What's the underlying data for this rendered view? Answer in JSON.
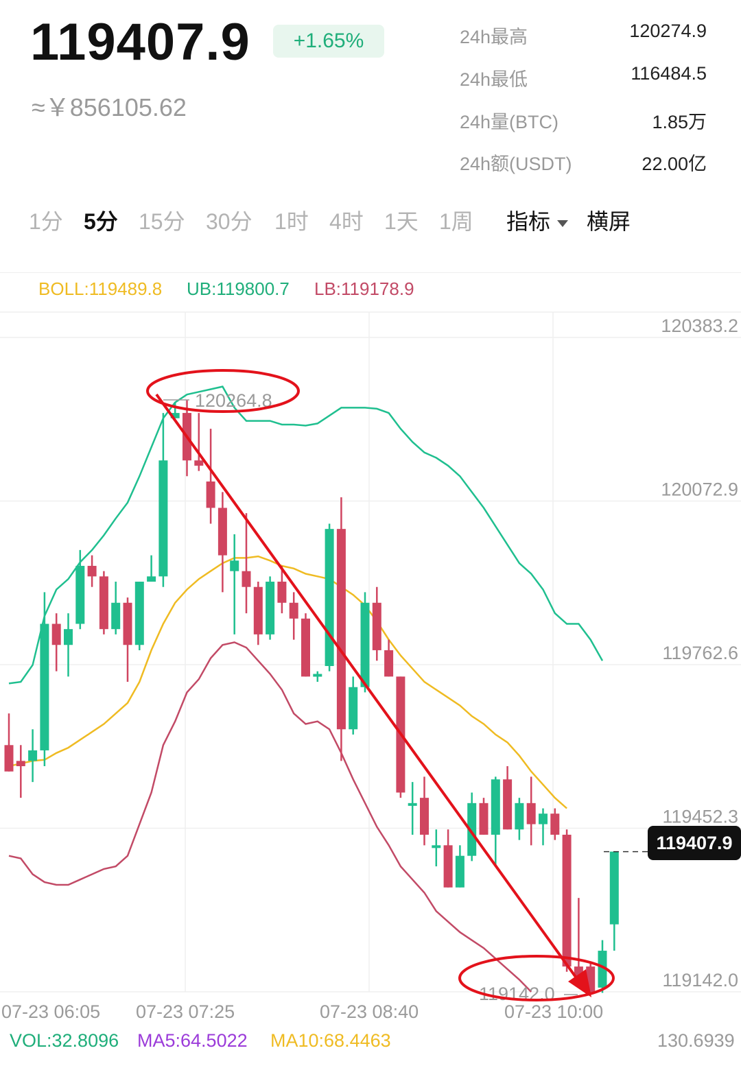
{
  "header": {
    "price": "119407.9",
    "change_pct": "+1.65%",
    "cny_price": "≈￥856105.62"
  },
  "stats": [
    {
      "label": "24h最高",
      "value": "120274.9"
    },
    {
      "label": "24h最低",
      "value": "116484.5"
    },
    {
      "label": "24h量(BTC)",
      "value": "1.85万"
    },
    {
      "label": "24h额(USDT)",
      "value": "22.00亿"
    }
  ],
  "tabs": [
    "1分",
    "5分",
    "15分",
    "30分",
    "1时",
    "4时",
    "1天",
    "1周"
  ],
  "active_tab": "5分",
  "indicator_label": "指标",
  "landscape_label": "横屏",
  "boll": {
    "boll": "BOLL:119489.8",
    "ub": "UB:119800.7",
    "lb": "LB:119178.9"
  },
  "chart_data": {
    "type": "candlestick",
    "y_ticks": [
      "120383.2",
      "120072.9",
      "119762.6",
      "119452.3",
      "119142.0"
    ],
    "x_ticks": [
      "07-23 06:05",
      "07-23 07:25",
      "07-23 08:40",
      "07-23 10:00"
    ],
    "high_marker": "120264.8",
    "low_marker": "119142.0",
    "last_price": "119407.9",
    "candles": [
      {
        "o": 119610,
        "h": 119670,
        "l": 119560,
        "c": 119560
      },
      {
        "o": 119580,
        "h": 119610,
        "l": 119510,
        "c": 119570
      },
      {
        "o": 119580,
        "h": 119640,
        "l": 119540,
        "c": 119600
      },
      {
        "o": 119600,
        "h": 119900,
        "l": 119570,
        "c": 119840
      },
      {
        "o": 119840,
        "h": 119860,
        "l": 119750,
        "c": 119800
      },
      {
        "o": 119800,
        "h": 119860,
        "l": 119740,
        "c": 119830
      },
      {
        "o": 119840,
        "h": 119980,
        "l": 119830,
        "c": 119950
      },
      {
        "o": 119950,
        "h": 119970,
        "l": 119910,
        "c": 119930
      },
      {
        "o": 119930,
        "h": 119940,
        "l": 119820,
        "c": 119830
      },
      {
        "o": 119830,
        "h": 119920,
        "l": 119820,
        "c": 119880
      },
      {
        "o": 119880,
        "h": 119890,
        "l": 119730,
        "c": 119800
      },
      {
        "o": 119800,
        "h": 119920,
        "l": 119790,
        "c": 119920
      },
      {
        "o": 119920,
        "h": 119970,
        "l": 119920,
        "c": 119930
      },
      {
        "o": 119930,
        "h": 120240,
        "l": 119910,
        "c": 120150
      },
      {
        "o": 120230,
        "h": 120260,
        "l": 120230,
        "c": 120240
      },
      {
        "o": 120240,
        "h": 120265,
        "l": 120120,
        "c": 120150
      },
      {
        "o": 120150,
        "h": 120240,
        "l": 120130,
        "c": 120140
      },
      {
        "o": 120110,
        "h": 120210,
        "l": 120030,
        "c": 120060
      },
      {
        "o": 120060,
        "h": 120090,
        "l": 119900,
        "c": 119970
      },
      {
        "o": 119940,
        "h": 120010,
        "l": 119820,
        "c": 119960
      },
      {
        "o": 119940,
        "h": 120050,
        "l": 119860,
        "c": 119910
      },
      {
        "o": 119910,
        "h": 119920,
        "l": 119800,
        "c": 119820
      },
      {
        "o": 119820,
        "h": 119930,
        "l": 119810,
        "c": 119920
      },
      {
        "o": 119920,
        "h": 119950,
        "l": 119860,
        "c": 119880
      },
      {
        "o": 119880,
        "h": 119900,
        "l": 119810,
        "c": 119850
      },
      {
        "o": 119850,
        "h": 119860,
        "l": 119740,
        "c": 119740
      },
      {
        "o": 119740,
        "h": 119750,
        "l": 119730,
        "c": 119745
      },
      {
        "o": 119760,
        "h": 120030,
        "l": 119750,
        "c": 120020
      },
      {
        "o": 120020,
        "h": 120080,
        "l": 119580,
        "c": 119640
      },
      {
        "o": 119640,
        "h": 119740,
        "l": 119630,
        "c": 119720
      },
      {
        "o": 119720,
        "h": 119900,
        "l": 119710,
        "c": 119880
      },
      {
        "o": 119880,
        "h": 119910,
        "l": 119770,
        "c": 119790
      },
      {
        "o": 119790,
        "h": 119810,
        "l": 119740,
        "c": 119740
      },
      {
        "o": 119740,
        "h": 119740,
        "l": 119510,
        "c": 119520
      },
      {
        "o": 119500,
        "h": 119540,
        "l": 119440,
        "c": 119500
      },
      {
        "o": 119510,
        "h": 119550,
        "l": 119420,
        "c": 119440
      },
      {
        "o": 119420,
        "h": 119450,
        "l": 119380,
        "c": 119420
      },
      {
        "o": 119420,
        "h": 119450,
        "l": 119340,
        "c": 119340
      },
      {
        "o": 119340,
        "h": 119420,
        "l": 119340,
        "c": 119400
      },
      {
        "o": 119400,
        "h": 119520,
        "l": 119390,
        "c": 119500
      },
      {
        "o": 119500,
        "h": 119510,
        "l": 119440,
        "c": 119440
      },
      {
        "o": 119440,
        "h": 119550,
        "l": 119380,
        "c": 119545
      },
      {
        "o": 119545,
        "h": 119570,
        "l": 119450,
        "c": 119450
      },
      {
        "o": 119450,
        "h": 119510,
        "l": 119430,
        "c": 119500
      },
      {
        "o": 119500,
        "h": 119550,
        "l": 119420,
        "c": 119460
      },
      {
        "o": 119460,
        "h": 119490,
        "l": 119420,
        "c": 119480
      },
      {
        "o": 119480,
        "h": 119490,
        "l": 119430,
        "c": 119440
      },
      {
        "o": 119440,
        "h": 119450,
        "l": 119180,
        "c": 119190
      },
      {
        "o": 119190,
        "h": 119320,
        "l": 119160,
        "c": 119170
      },
      {
        "o": 119190,
        "h": 119200,
        "l": 119142,
        "c": 119140
      },
      {
        "o": 119150,
        "h": 119240,
        "l": 119140,
        "c": 119220
      },
      {
        "o": 119270,
        "h": 119408,
        "l": 119220,
        "c": 119408
      }
    ],
    "ub": [
      119727,
      119730,
      119762,
      119855,
      119905,
      119925,
      119957,
      119980,
      120008,
      120040,
      120070,
      120120,
      120175,
      120230,
      120260,
      120275,
      120280,
      120285,
      120290,
      120250,
      120225,
      120225,
      120225,
      120218,
      120218,
      120216,
      120220,
      120235,
      120250,
      120250,
      120250,
      120248,
      120240,
      120210,
      120185,
      120165,
      120155,
      120140,
      120120,
      120090,
      120060,
      120025,
      119990,
      119955,
      119935,
      119905,
      119860,
      119840,
      119840,
      119810,
      119770
    ],
    "mid": [
      119570,
      119575,
      119580,
      119582,
      119595,
      119605,
      119620,
      119635,
      119650,
      119670,
      119690,
      119730,
      119790,
      119840,
      119880,
      119905,
      119925,
      119940,
      119955,
      119965,
      119965,
      119968,
      119960,
      119950,
      119945,
      119935,
      119930,
      119925,
      119910,
      119895,
      119875,
      119845,
      119810,
      119780,
      119755,
      119730,
      119715,
      119700,
      119685,
      119665,
      119650,
      119630,
      119615,
      119590,
      119560,
      119535,
      119510,
      119490
    ],
    "lb": [
      119400,
      119395,
      119365,
      119350,
      119345,
      119345,
      119355,
      119365,
      119375,
      119380,
      119400,
      119460,
      119520,
      119610,
      119655,
      119710,
      119735,
      119775,
      119800,
      119805,
      119795,
      119770,
      119745,
      119715,
      119670,
      119650,
      119655,
      119640,
      119595,
      119545,
      119500,
      119455,
      119420,
      119380,
      119355,
      119330,
      119295,
      119275,
      119255,
      119240,
      119225,
      119205,
      119185,
      119165,
      119142
    ]
  },
  "volume": {
    "vol": "VOL:32.8096",
    "ma5": "MA5:64.5022",
    "ma10": "MA10:68.4463",
    "axis_value": "130.6939"
  },
  "colors": {
    "up": "#1fbf8f",
    "down": "#d04560",
    "boll": "#efbb22",
    "ub": "#1fbf8f",
    "lb": "#c24a66",
    "ma5": "#9b3bd9",
    "annotation": "#e3121b"
  }
}
